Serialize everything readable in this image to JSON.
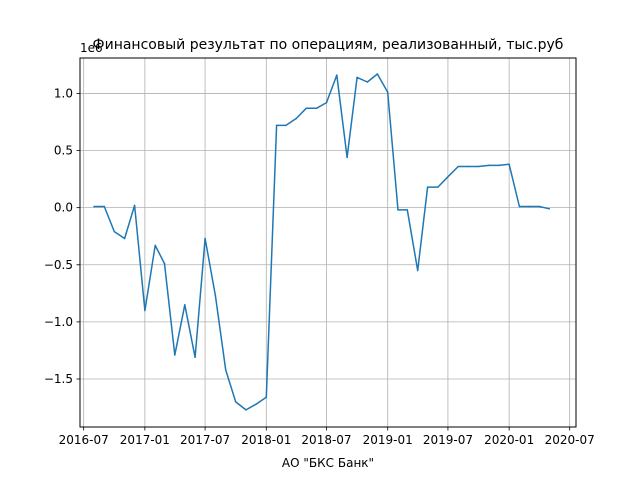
{
  "chart_data": {
    "type": "line",
    "title": "Финансовый результат по операциям, реализованный, тыс.руб",
    "xlabel": "АО \"БКС Банк\"",
    "ylabel": "",
    "y_offset_label": "1e6",
    "grid": true,
    "line_color": "#1f77b4",
    "xlim": [
      "2016-06-20",
      "2020-07-20"
    ],
    "ylim": [
      -1.92,
      1.31
    ],
    "x_ticks": [
      "2016-07",
      "2017-01",
      "2017-07",
      "2018-01",
      "2018-07",
      "2019-01",
      "2019-07",
      "2020-01",
      "2020-07"
    ],
    "y_ticks": [
      -1.5,
      -1.0,
      -0.5,
      0.0,
      0.5,
      1.0
    ],
    "y_tick_labels": [
      "−1.5",
      "−1.0",
      "−0.5",
      "0.0",
      "0.5",
      "1.0"
    ],
    "series": [
      {
        "x": [
          "2016-08-01",
          "2016-09-01",
          "2016-10-01",
          "2016-11-01",
          "2016-12-01",
          "2017-01-01",
          "2017-02-01",
          "2017-03-01",
          "2017-04-01",
          "2017-05-01",
          "2017-06-01",
          "2017-07-01",
          "2017-08-01",
          "2017-09-01",
          "2017-10-01",
          "2017-11-01",
          "2017-12-01",
          "2018-01-01",
          "2018-02-01",
          "2018-03-01",
          "2018-04-01",
          "2018-05-01",
          "2018-06-01",
          "2018-07-01",
          "2018-08-01",
          "2018-09-01",
          "2018-10-01",
          "2018-11-01",
          "2018-12-01",
          "2019-01-01",
          "2019-02-01",
          "2019-03-01",
          "2019-04-01",
          "2019-05-01",
          "2019-06-01",
          "2019-07-01",
          "2019-08-01",
          "2019-09-01",
          "2019-10-01",
          "2019-11-01",
          "2019-12-01",
          "2020-01-01",
          "2020-02-01",
          "2020-03-01",
          "2020-04-01",
          "2020-05-01"
        ],
        "y": [
          0.01,
          0.01,
          -0.21,
          -0.27,
          0.02,
          -0.9,
          -0.33,
          -0.49,
          -1.29,
          -0.85,
          -1.31,
          -0.27,
          -0.77,
          -1.42,
          -1.7,
          -1.77,
          -1.72,
          -1.66,
          0.72,
          0.72,
          0.78,
          0.87,
          0.87,
          0.92,
          1.16,
          0.44,
          1.14,
          1.1,
          1.17,
          1.01,
          -0.02,
          -0.02,
          -0.55,
          0.18,
          0.18,
          0.27,
          0.36,
          0.36,
          0.36,
          0.37,
          0.37,
          0.38,
          0.01,
          0.01,
          0.01,
          -0.01
        ]
      }
    ]
  }
}
